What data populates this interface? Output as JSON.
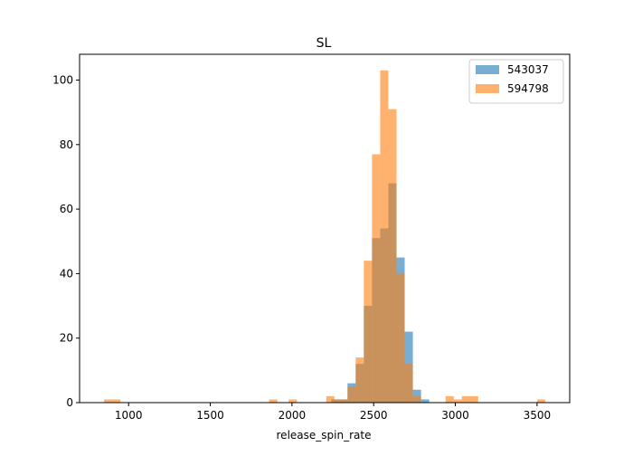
{
  "chart_data": {
    "type": "histogram",
    "title": "SL",
    "xlabel": "release_spin_rate",
    "ylabel": "",
    "xlim": [
      700,
      3700
    ],
    "ylim": [
      0,
      108
    ],
    "x_ticks": [
      1000,
      1500,
      2000,
      2500,
      3000,
      3500
    ],
    "y_ticks": [
      0,
      20,
      40,
      60,
      80,
      100
    ],
    "x_tick_labels": [
      "1000",
      "1500",
      "2000",
      "2500",
      "3000",
      "3500"
    ],
    "y_tick_labels": [
      "0",
      "20",
      "40",
      "60",
      "80",
      "100"
    ],
    "grid": false,
    "legend_position": "top-right",
    "series": [
      {
        "name": "543037",
        "color": "#1f77b4",
        "opacity": 0.6,
        "bins": [
          {
            "x0": 2240,
            "x1": 2290,
            "count": 1
          },
          {
            "x0": 2290,
            "x1": 2340,
            "count": 1
          },
          {
            "x0": 2340,
            "x1": 2390,
            "count": 6
          },
          {
            "x0": 2390,
            "x1": 2440,
            "count": 12
          },
          {
            "x0": 2440,
            "x1": 2490,
            "count": 30
          },
          {
            "x0": 2490,
            "x1": 2540,
            "count": 51
          },
          {
            "x0": 2540,
            "x1": 2590,
            "count": 54
          },
          {
            "x0": 2590,
            "x1": 2640,
            "count": 68
          },
          {
            "x0": 2640,
            "x1": 2690,
            "count": 45
          },
          {
            "x0": 2690,
            "x1": 2740,
            "count": 22
          },
          {
            "x0": 2740,
            "x1": 2790,
            "count": 4
          },
          {
            "x0": 2790,
            "x1": 2840,
            "count": 1
          }
        ]
      },
      {
        "name": "594798",
        "color": "#ff7f0e",
        "opacity": 0.6,
        "bins": [
          {
            "x0": 850,
            "x1": 950,
            "count": 1
          },
          {
            "x0": 1860,
            "x1": 1910,
            "count": 1
          },
          {
            "x0": 1980,
            "x1": 2030,
            "count": 1
          },
          {
            "x0": 2210,
            "x1": 2260,
            "count": 2
          },
          {
            "x0": 2260,
            "x1": 2290,
            "count": 1
          },
          {
            "x0": 2290,
            "x1": 2340,
            "count": 1
          },
          {
            "x0": 2340,
            "x1": 2390,
            "count": 5
          },
          {
            "x0": 2390,
            "x1": 2440,
            "count": 14
          },
          {
            "x0": 2440,
            "x1": 2490,
            "count": 44
          },
          {
            "x0": 2490,
            "x1": 2540,
            "count": 77
          },
          {
            "x0": 2540,
            "x1": 2590,
            "count": 103
          },
          {
            "x0": 2590,
            "x1": 2640,
            "count": 91
          },
          {
            "x0": 2640,
            "x1": 2690,
            "count": 40
          },
          {
            "x0": 2690,
            "x1": 2740,
            "count": 12
          },
          {
            "x0": 2740,
            "x1": 2790,
            "count": 2
          },
          {
            "x0": 2940,
            "x1": 2990,
            "count": 2
          },
          {
            "x0": 2990,
            "x1": 3040,
            "count": 1
          },
          {
            "x0": 3040,
            "x1": 3140,
            "count": 2
          },
          {
            "x0": 3500,
            "x1": 3550,
            "count": 1
          }
        ]
      }
    ]
  }
}
